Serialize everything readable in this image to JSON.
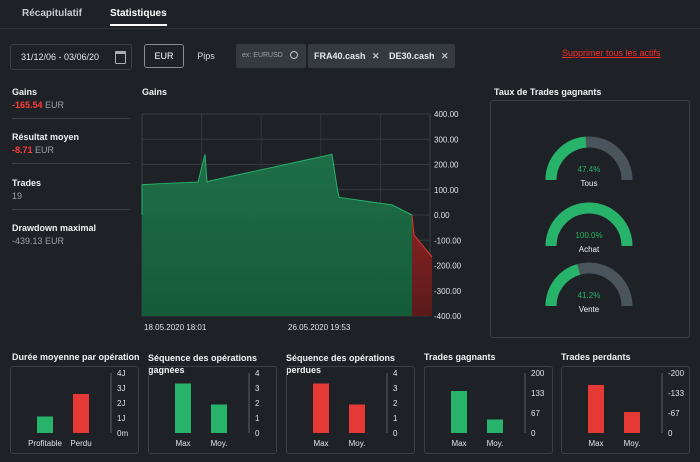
{
  "tabs": [
    "Récapitulatif",
    "Statistiques"
  ],
  "date_range": "31/12/06 - 03/06/20",
  "unit_buttons": [
    "EUR",
    "Pips"
  ],
  "search_placeholder": "ex: EURUSD",
  "chips": [
    "FRA40.cash",
    "DE30.cash"
  ],
  "remove_all": "Supprimer tous les actifs",
  "summary": {
    "gains_label": "Gains",
    "gains_value": "-165.54",
    "gains_unit": "EUR",
    "avg_label": "Résultat moyen",
    "avg_value": "-8.71",
    "avg_unit": "EUR",
    "trades_label": "Trades",
    "trades_value": "19",
    "drawdown_label": "Drawdown maximal",
    "drawdown_value": "-439.13 EUR"
  },
  "gains_chart": {
    "title": "Gains",
    "y_ticks": [
      "400.00",
      "300.00",
      "200.00",
      "100.00",
      "0.00",
      "-100.00",
      "-200.00",
      "-300.00",
      "-400.00"
    ],
    "x_labels": [
      "18.05.2020 18:01",
      "26.05.2020 19:53"
    ]
  },
  "win_rate": {
    "title": "Taux de Trades gagnants",
    "gauges": [
      {
        "label": "Tous",
        "value_text": "47.4%",
        "value": 0.474
      },
      {
        "label": "Achat",
        "value_text": "100.0%",
        "value": 1.0
      },
      {
        "label": "Vente",
        "value_text": "41.2%",
        "value": 0.412
      }
    ]
  },
  "colors": {
    "green": "#27b36a",
    "red": "#e53935",
    "track": "#4a545c",
    "accent_red": "#ff2b2b"
  },
  "chart_data": [
    {
      "type": "area",
      "title": "Gains",
      "ylim": [
        -400,
        400
      ],
      "x_labels": [
        "18.05.2020 18:01",
        "26.05.2020 19:53"
      ],
      "values": [
        0,
        120,
        125,
        130,
        240,
        130,
        135,
        240,
        110,
        70,
        40,
        0,
        -80,
        -165.54
      ]
    },
    {
      "type": "bar",
      "title": "Durée moyenne par opération",
      "categories": [
        "Profitable",
        "Perdu"
      ],
      "values": [
        1.1,
        2.6
      ],
      "y_ticks": [
        "4J",
        "3J",
        "2J",
        "1J",
        "0m"
      ],
      "ylim": [
        0,
        4
      ]
    },
    {
      "type": "bar",
      "title": "Séquence des opérations gagnées",
      "categories": [
        "Max",
        "Moy."
      ],
      "values": [
        3.3,
        1.9
      ],
      "y_ticks": [
        "4",
        "3",
        "2",
        "1",
        "0"
      ],
      "ylim": [
        0,
        4
      ]
    },
    {
      "type": "bar",
      "title": "Séquence des opérations perdues",
      "categories": [
        "Max",
        "Moy."
      ],
      "values": [
        3.3,
        1.9
      ],
      "y_ticks": [
        "4",
        "3",
        "2",
        "1",
        "0"
      ],
      "ylim": [
        0,
        4
      ]
    },
    {
      "type": "bar",
      "title": "Trades gagnants",
      "categories": [
        "Max",
        "Moy."
      ],
      "values": [
        140,
        45
      ],
      "y_ticks": [
        "200",
        "133",
        "67",
        "0"
      ],
      "ylim": [
        0,
        200
      ]
    },
    {
      "type": "bar",
      "title": "Trades perdants",
      "categories": [
        "Max",
        "Moy."
      ],
      "values": [
        -160,
        -70
      ],
      "y_ticks": [
        "-200",
        "-133",
        "-67",
        "0"
      ],
      "ylim": [
        0,
        -200
      ]
    }
  ]
}
